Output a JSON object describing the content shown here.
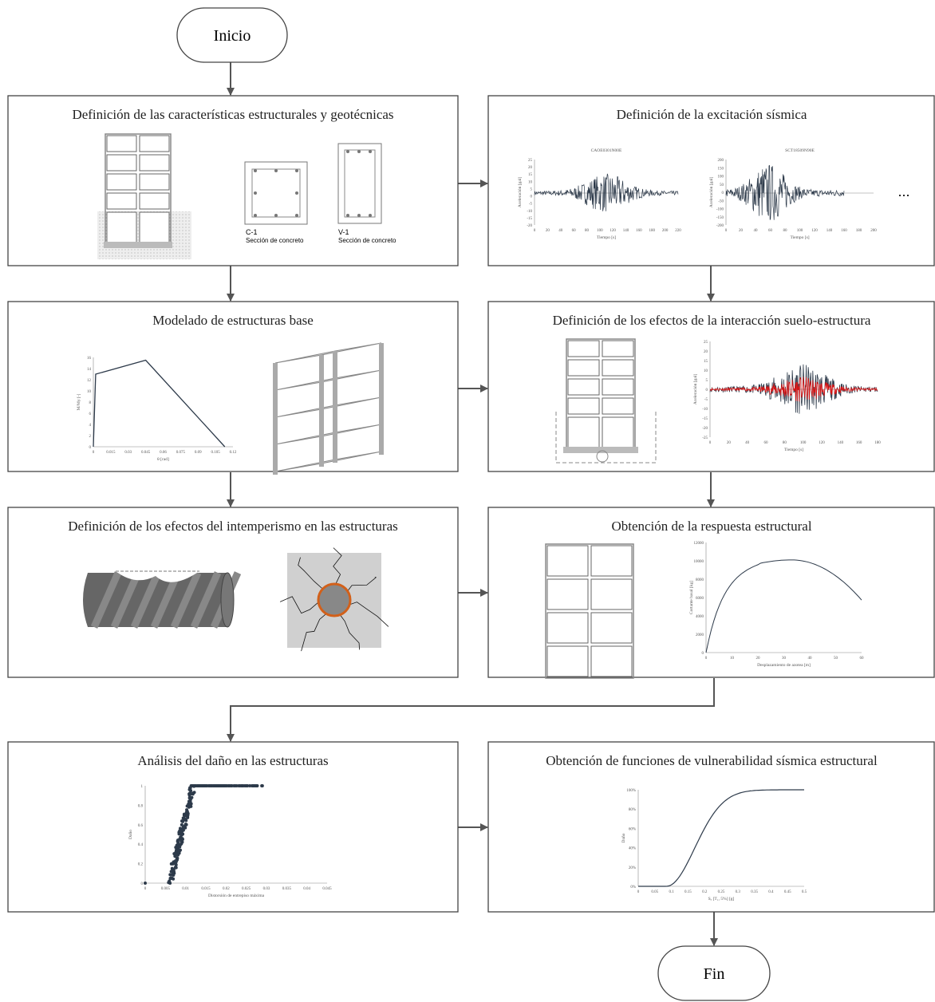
{
  "start": "Inicio",
  "end": "Fin",
  "steps": [
    {
      "title": "Definición de las características estructurales y geotécnicas",
      "sections": [
        {
          "id": "C-1",
          "caption": "Sección de concreto"
        },
        {
          "id": "V-1",
          "caption": "Sección de concreto"
        }
      ]
    },
    {
      "title": "Definición de la excitación sísmica",
      "records": [
        {
          "name": "CAOE0301N00E",
          "xlabel": "Tiempo [s]",
          "ylabel": "Aceleración [gal]",
          "xticks": [
            "0",
            "20",
            "40",
            "60",
            "80",
            "100",
            "120",
            "140",
            "160",
            "180",
            "200",
            "220"
          ],
          "yticks": [
            "25",
            "20",
            "15",
            "10",
            "5",
            "0",
            "-5",
            "-10",
            "-15",
            "-20"
          ]
        },
        {
          "name": "SCT18509N90E",
          "xlabel": "Tiempo [s]",
          "ylabel": "Aceleración [gal]",
          "xticks": [
            "0",
            "20",
            "40",
            "60",
            "80",
            "100",
            "120",
            "140",
            "160",
            "180",
            "200"
          ],
          "yticks": [
            "200",
            "150",
            "100",
            "50",
            "0",
            "-50",
            "-100",
            "-150",
            "-200"
          ]
        }
      ],
      "more": "..."
    },
    {
      "title": "Modelado de estructuras base",
      "plot": {
        "xlabel": "θ [rad]",
        "ylabel": "M/My [-]",
        "xticks": [
          "0",
          "0.015",
          "0.03",
          "0.045",
          "0.06",
          "0.075",
          "0.09",
          "0.105",
          "0.12"
        ],
        "yticks": [
          "16",
          "14",
          "12",
          "10",
          "8",
          "6",
          "4",
          "2",
          "0"
        ]
      }
    },
    {
      "title": "Definición de los efectos de la interacción suelo-estructura",
      "plot": {
        "xlabel": "Tiempo [s]",
        "ylabel": "Aceleración [gal]",
        "xticks": [
          "0",
          "20",
          "40",
          "60",
          "80",
          "100",
          "120",
          "140",
          "160",
          "180"
        ],
        "yticks": [
          "25",
          "20",
          "15",
          "10",
          "5",
          "0",
          "-5",
          "-10",
          "-15",
          "-20",
          "-25"
        ]
      }
    },
    {
      "title": "Definición de los efectos del intemperismo en las estructuras"
    },
    {
      "title": "Obtención de la respuesta estructural",
      "plot": {
        "xlabel": "Desplazamiento de azotea [m]",
        "ylabel": "Cortante basal [kg]",
        "xticks": [
          "0",
          "10",
          "20",
          "30",
          "40",
          "50",
          "60"
        ],
        "yticks": [
          "12000",
          "10000",
          "8000",
          "6000",
          "4000",
          "2000",
          "0"
        ]
      }
    },
    {
      "title": "Análisis del daño en las estructuras",
      "plot": {
        "xlabel": "Distorsión de entrepiso máxima",
        "ylabel": "Daño",
        "xticks": [
          "0",
          "0.005",
          "0.01",
          "0.015",
          "0.02",
          "0.025",
          "0.03",
          "0.035",
          "0.04",
          "0.045"
        ],
        "yticks": [
          "1",
          "0.8",
          "0.6",
          "0.4",
          "0.2",
          "0"
        ]
      }
    },
    {
      "title": "Obtención de funciones de vulnerabilidad sísmica estructural",
      "plot": {
        "xlabel": "Sₐ [T₁, 5%] [g]",
        "ylabel": "Daño",
        "xticks": [
          "0",
          "0.05",
          "0.1",
          "0.15",
          "0.2",
          "0.25",
          "0.3",
          "0.35",
          "0.4",
          "0.45",
          "0.5"
        ],
        "yticks": [
          "100%",
          "80%",
          "60%",
          "40%",
          "20%",
          "0%"
        ]
      }
    }
  ]
}
